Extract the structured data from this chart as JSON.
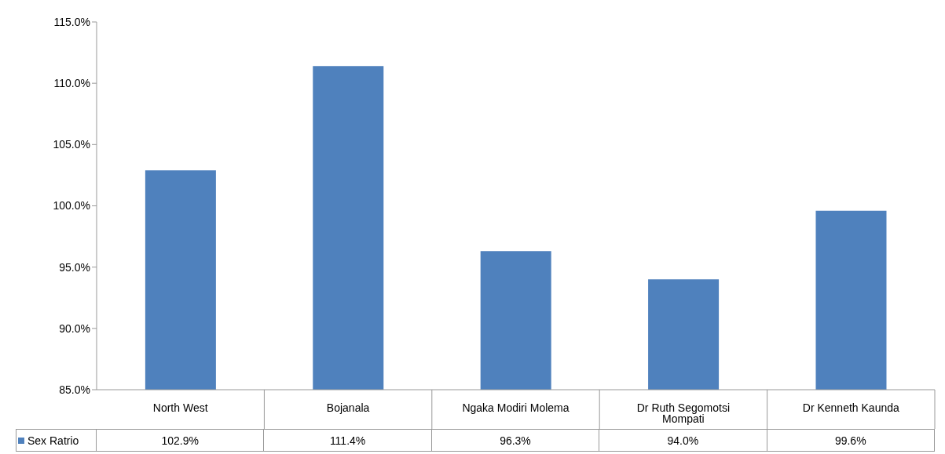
{
  "chart_data": {
    "type": "bar",
    "categories": [
      "North West",
      "Bojanala",
      "Ngaka Modiri Molema",
      "Dr Ruth Segomotsi Mompati",
      "Dr Kenneth Kaunda"
    ],
    "series": [
      {
        "name": "Sex Ratrio",
        "color": "#4f81bd",
        "values": [
          102.9,
          111.4,
          96.3,
          94.0,
          99.6
        ],
        "value_labels": [
          "102.9%",
          "111.4%",
          "96.3%",
          "94.0%",
          "99.6%"
        ]
      }
    ],
    "ylim": [
      85,
      115
    ],
    "yticks": [
      {
        "value": 85,
        "label": "85.0%"
      },
      {
        "value": 90,
        "label": "90.0%"
      },
      {
        "value": 95,
        "label": "95.0%"
      },
      {
        "value": 100,
        "label": "100.0%"
      },
      {
        "value": 105,
        "label": "105.0%"
      },
      {
        "value": 110,
        "label": "110.0%"
      },
      {
        "value": 115,
        "label": "115.0%"
      }
    ],
    "grid": false,
    "legend": "bottom left"
  }
}
